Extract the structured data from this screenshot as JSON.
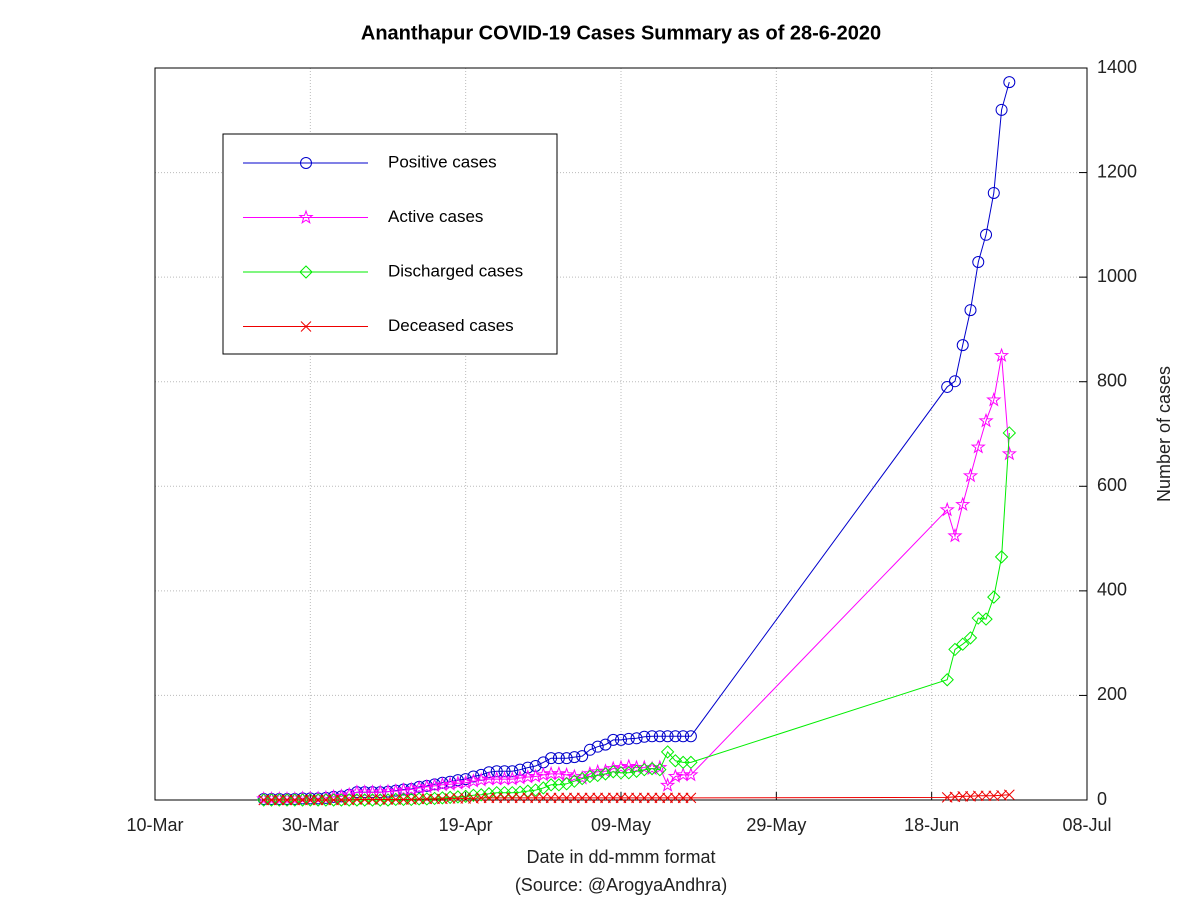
{
  "chart_data": {
    "type": "line",
    "title": "Ananthapur COVID-19 Cases Summary as of 28-6-2020",
    "xlabel": "Date in dd-mmm format",
    "source": "(Source: @ArogyaAndhra)",
    "ylabel": "Number of cases",
    "x": [
      "24-Mar",
      "25-Mar",
      "26-Mar",
      "27-Mar",
      "28-Mar",
      "29-Mar",
      "30-Mar",
      "31-Mar",
      "01-Apr",
      "02-Apr",
      "03-Apr",
      "04-Apr",
      "05-Apr",
      "06-Apr",
      "07-Apr",
      "08-Apr",
      "09-Apr",
      "10-Apr",
      "11-Apr",
      "12-Apr",
      "13-Apr",
      "14-Apr",
      "15-Apr",
      "16-Apr",
      "17-Apr",
      "18-Apr",
      "19-Apr",
      "20-Apr",
      "21-Apr",
      "22-Apr",
      "23-Apr",
      "24-Apr",
      "25-Apr",
      "26-Apr",
      "27-Apr",
      "28-Apr",
      "29-Apr",
      "30-Apr",
      "01-May",
      "02-May",
      "03-May",
      "04-May",
      "05-May",
      "06-May",
      "07-May",
      "08-May",
      "09-May",
      "10-May",
      "11-May",
      "12-May",
      "13-May",
      "14-May",
      "15-May",
      "16-May",
      "17-May",
      "18-May",
      "20-Jun",
      "21-Jun",
      "22-Jun",
      "23-Jun",
      "24-Jun",
      "25-Jun",
      "26-Jun",
      "27-Jun",
      "28-Jun"
    ],
    "series": [
      {
        "name": "Positive cases",
        "color": "#0000cc",
        "marker": "circle",
        "values": [
          2,
          2,
          2,
          2,
          2,
          3,
          3,
          3,
          4,
          6,
          7,
          10,
          15,
          15,
          15,
          15,
          16,
          18,
          20,
          21,
          25,
          27,
          30,
          33,
          35,
          38,
          40,
          45,
          48,
          53,
          55,
          55,
          55,
          58,
          62,
          65,
          72,
          80,
          80,
          80,
          82,
          84,
          96,
          102,
          106,
          115,
          115,
          117,
          118,
          121,
          122,
          122,
          122,
          122,
          122,
          122,
          790,
          801,
          870,
          937,
          1029,
          1081,
          1161,
          1320,
          1373
        ]
      },
      {
        "name": "Active cases",
        "color": "#ff00ff",
        "marker": "star",
        "values": [
          2,
          2,
          2,
          2,
          2,
          3,
          3,
          3,
          4,
          6,
          7,
          10,
          15,
          15,
          15,
          15,
          16,
          17,
          19,
          20,
          23,
          25,
          27,
          29,
          30,
          32,
          33,
          36,
          38,
          40,
          40,
          40,
          40,
          42,
          44,
          45,
          48,
          50,
          50,
          48,
          45,
          42,
          50,
          54,
          55,
          60,
          62,
          64,
          62,
          62,
          60,
          62,
          28,
          45,
          48,
          48,
          555,
          505,
          565,
          620,
          675,
          725,
          765,
          850,
          662
        ]
      },
      {
        "name": "Discharged cases",
        "color": "#00ee00",
        "marker": "diamond",
        "values": [
          0,
          0,
          0,
          0,
          0,
          0,
          0,
          0,
          0,
          0,
          0,
          0,
          0,
          0,
          0,
          0,
          0,
          1,
          1,
          1,
          2,
          2,
          3,
          4,
          5,
          6,
          7,
          9,
          10,
          12,
          14,
          14,
          14,
          15,
          17,
          19,
          23,
          29,
          29,
          31,
          36,
          41,
          45,
          47,
          50,
          54,
          52,
          52,
          55,
          58,
          60,
          58,
          92,
          75,
          72,
          72,
          230,
          288,
          298,
          310,
          348,
          346,
          388,
          465,
          702
        ]
      },
      {
        "name": "Deceased cases",
        "color": "#ee0000",
        "marker": "x",
        "values": [
          0,
          0,
          0,
          0,
          0,
          0,
          0,
          0,
          0,
          0,
          0,
          0,
          1,
          1,
          1,
          1,
          1,
          1,
          1,
          1,
          2,
          2,
          2,
          2,
          3,
          3,
          3,
          3,
          4,
          4,
          4,
          4,
          4,
          4,
          4,
          4,
          4,
          4,
          4,
          4,
          4,
          4,
          4,
          4,
          4,
          4,
          4,
          4,
          4,
          4,
          4,
          4,
          4,
          4,
          4,
          4,
          5,
          6,
          7,
          7,
          8,
          8,
          8,
          9,
          10
        ]
      }
    ],
    "xlim": [
      "10-Mar",
      "08-Jul"
    ],
    "xticks": [
      "10-Mar",
      "30-Mar",
      "19-Apr",
      "09-May",
      "29-May",
      "18-Jun",
      "08-Jul"
    ],
    "ylim": [
      0,
      1400
    ],
    "yticks": [
      0,
      200,
      400,
      600,
      800,
      1000,
      1200,
      1400
    ],
    "grid": true,
    "legend": "upper left"
  }
}
